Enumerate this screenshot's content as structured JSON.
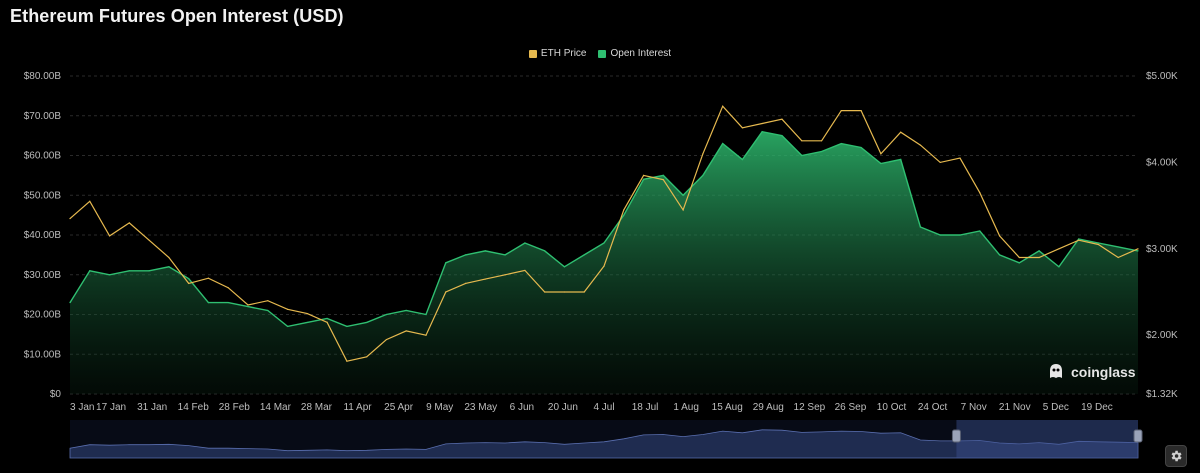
{
  "title": "Ethereum Futures Open Interest (USD)",
  "watermark": "coinglass",
  "colors": {
    "eth_price": "#e6b94f",
    "open_interest": "#2fbf71",
    "background": "#000000",
    "navigator": "#2a3a6a"
  },
  "icons": {
    "settings": "gear-icon",
    "watermark": "coinglass-logo-icon"
  },
  "chart_data": {
    "type": "area",
    "legend_position": "top-center",
    "grid": true,
    "series": [
      {
        "name": "Open Interest",
        "type": "area",
        "axis": "left",
        "values": [
          23,
          31,
          30,
          31,
          31,
          32,
          29,
          23,
          23,
          22,
          21,
          17,
          18,
          19,
          17,
          18,
          20,
          21,
          20,
          33,
          35,
          36,
          35,
          38,
          36,
          32,
          35,
          38,
          45,
          54,
          55,
          50,
          55,
          63,
          59,
          66,
          65,
          60,
          61,
          63,
          62,
          58,
          59,
          42,
          40,
          40,
          41,
          35,
          33,
          36,
          32,
          39,
          38,
          37,
          36
        ]
      },
      {
        "name": "ETH Price",
        "type": "line",
        "axis": "right",
        "values": [
          3350,
          3550,
          3150,
          3300,
          3100,
          2900,
          2600,
          2660,
          2550,
          2350,
          2400,
          2300,
          2250,
          2150,
          1700,
          1750,
          1950,
          2050,
          2000,
          2500,
          2600,
          2650,
          2700,
          2750,
          2500,
          2500,
          2500,
          2800,
          3450,
          3850,
          3800,
          3450,
          4100,
          4650,
          4400,
          4450,
          4500,
          4250,
          4250,
          4600,
          4600,
          4100,
          4350,
          4200,
          4000,
          4050,
          3650,
          3150,
          2900,
          2900,
          3000,
          3100,
          3050,
          2900,
          3000
        ]
      }
    ],
    "x_labels": [
      "3 Jan",
      "17 Jan",
      "31 Jan",
      "14 Feb",
      "28 Feb",
      "14 Mar",
      "28 Mar",
      "11 Apr",
      "25 Apr",
      "9 May",
      "23 May",
      "6 Jun",
      "20 Jun",
      "4 Jul",
      "18 Jul",
      "1 Aug",
      "15 Aug",
      "29 Aug",
      "12 Sep",
      "26 Sep",
      "10 Oct",
      "24 Oct",
      "7 Nov",
      "21 Nov",
      "5 Dec",
      "19 Dec"
    ],
    "y_left_labels": [
      "$0",
      "$10.00B",
      "$20.00B",
      "$30.00B",
      "$40.00B",
      "$50.00B",
      "$60.00B",
      "$70.00B",
      "$80.00B"
    ],
    "y_right_labels": [
      "$1.32K",
      "$2.00K",
      "$3.00K",
      "$4.00K",
      "$5.00K"
    ],
    "y_right_ticks": [
      1320,
      2000,
      3000,
      4000,
      5000
    ],
    "ylim_left": [
      0,
      80
    ],
    "ylim_right": [
      1320,
      5000
    ],
    "navigator_selected_fraction": [
      0.83,
      1.0
    ]
  }
}
